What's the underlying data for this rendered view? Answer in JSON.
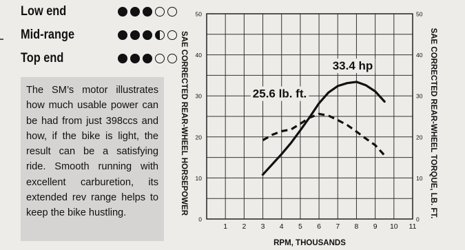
{
  "ratings": [
    {
      "label": "Low end",
      "score": 3,
      "max": 5
    },
    {
      "label": "Mid-range",
      "score": 3.5,
      "max": 5
    },
    {
      "label": "Top end",
      "score": 3,
      "max": 5
    }
  ],
  "blurb": "The SM’s motor illustrates how much usable power can be had from just 398ccs and how, if the bike is light, the result can be a satisfying ride. Smooth running with excellent carburetion, its extended rev range helps to keep the bike hustling.",
  "chart_data": {
    "type": "line",
    "xlabel": "RPM, THOUSANDS",
    "ylabel_left": "SAE CORRECTED REAR-WHEEL HORSEPOWER",
    "ylabel_right": "SAE CORRECTED REAR-WHEEL TORQUE, LB. FT.",
    "xlim": [
      0,
      11
    ],
    "ylim": [
      0,
      50
    ],
    "x_ticks": [
      1,
      2,
      3,
      4,
      5,
      6,
      7,
      8,
      9,
      10,
      11
    ],
    "y_ticks": [
      0,
      10,
      20,
      30,
      40,
      50
    ],
    "grid": true,
    "series": [
      {
        "style": "solid",
        "x": [
          3.0,
          3.5,
          4.0,
          4.5,
          5.0,
          5.5,
          6.0,
          6.5,
          7.0,
          7.5,
          8.0,
          8.5,
          9.0,
          9.5
        ],
        "y": [
          10.8,
          13.3,
          15.8,
          18.5,
          21.6,
          24.8,
          28.2,
          30.8,
          32.4,
          33.1,
          33.4,
          32.6,
          31.1,
          28.6
        ]
      },
      {
        "style": "dashed",
        "x": [
          3.0,
          3.5,
          4.0,
          4.5,
          5.0,
          5.5,
          6.0,
          6.5,
          7.0,
          7.5,
          8.0,
          8.5,
          9.0,
          9.5
        ],
        "y": [
          19.2,
          20.5,
          21.4,
          21.8,
          23.2,
          24.7,
          25.6,
          25.2,
          24.1,
          22.9,
          21.3,
          19.6,
          18.0,
          15.5
        ]
      }
    ],
    "annotations": [
      {
        "text": "33.4 hp",
        "x": 7.8,
        "y": 36.4
      },
      {
        "text": "25.6 lb. ft.",
        "x": 3.9,
        "y": 29.6
      }
    ]
  }
}
